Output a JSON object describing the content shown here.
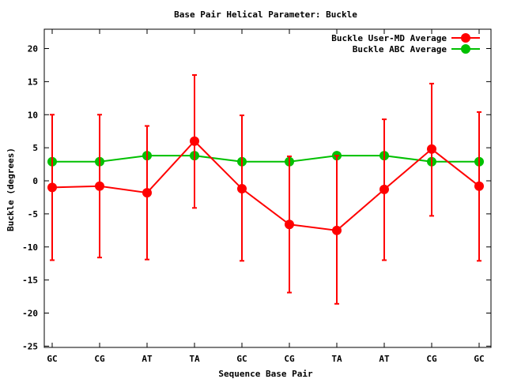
{
  "chart_data": {
    "type": "line",
    "title": "Base Pair Helical Parameter: Buckle",
    "xlabel": "Sequence Base Pair",
    "ylabel": "Buckle (degrees)",
    "categories": [
      "GC",
      "CG",
      "AT",
      "TA",
      "GC",
      "CG",
      "TA",
      "AT",
      "CG",
      "GC"
    ],
    "ylim": [
      -26,
      23
    ],
    "yticks": [
      -25,
      -20,
      -15,
      -10,
      -5,
      0,
      5,
      10,
      15,
      20
    ],
    "legend_position": "top-right",
    "series": [
      {
        "name": "Buckle User-MD Average",
        "color": "#ff0000",
        "values": [
          -1.0,
          -0.8,
          -1.8,
          6.0,
          -1.2,
          -6.6,
          -7.5,
          -1.3,
          4.8,
          -0.8
        ],
        "error_low": [
          -12.0,
          -11.6,
          -11.9,
          -4.1,
          -12.1,
          -16.9,
          -18.6,
          -12.0,
          -5.3,
          -12.1
        ],
        "error_high": [
          10.0,
          10.0,
          8.3,
          16.0,
          9.9,
          3.7,
          3.8,
          9.3,
          14.7,
          10.4
        ]
      },
      {
        "name": "Buckle ABC Average",
        "color": "#00c000",
        "values": [
          2.9,
          2.9,
          3.8,
          3.8,
          2.9,
          2.9,
          3.8,
          3.8,
          2.9,
          2.9
        ]
      }
    ]
  }
}
